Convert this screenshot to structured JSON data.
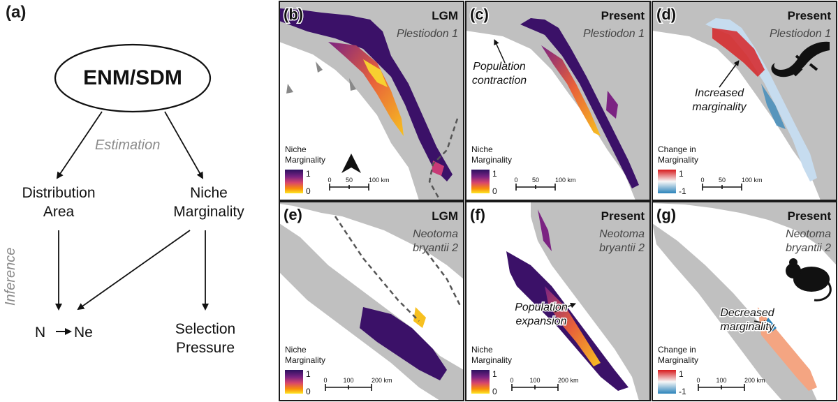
{
  "panel_a": {
    "label": "(a)",
    "ellipse_text": "ENM/SDM",
    "estimation": "Estimation",
    "inference": "Inference",
    "distribution_l1": "Distribution",
    "distribution_l2": "Area",
    "niche_l1": "Niche",
    "niche_l2": "Marginality",
    "n": "N",
    "ne": "Ne",
    "selection_l1": "Selection",
    "selection_l2": "Pressure"
  },
  "colors": {
    "land": "#c0c0c0",
    "ocean": "#ffffff",
    "marg_high": "#2c1160",
    "marg_low": "#fde725",
    "change_pos": "#d7191c",
    "change_neg": "#2b83ba",
    "border": "#555555"
  },
  "maps": [
    {
      "label": "(b)",
      "period": "LGM",
      "species_l1": "Plestiodon 1",
      "species_l2": "",
      "legend_t1": "Niche",
      "legend_t2": "Marginality",
      "legend_max": "1",
      "legend_min": "0",
      "scale_ticks": [
        "0",
        "50",
        "100 km"
      ],
      "annotation_l1": "",
      "annotation_l2": ""
    },
    {
      "label": "(c)",
      "period": "Present",
      "species_l1": "Plestiodon 1",
      "species_l2": "",
      "legend_t1": "Niche",
      "legend_t2": "Marginality",
      "legend_max": "1",
      "legend_min": "0",
      "scale_ticks": [
        "0",
        "50",
        "100 km"
      ],
      "annotation_l1": "Population",
      "annotation_l2": "contraction"
    },
    {
      "label": "(d)",
      "period": "Present",
      "species_l1": "Plestiodon 1",
      "species_l2": "",
      "legend_t1": "Change in",
      "legend_t2": "Marginality",
      "legend_max": "1",
      "legend_min": "-1",
      "scale_ticks": [
        "0",
        "50",
        "100 km"
      ],
      "annotation_l1": "Increased",
      "annotation_l2": "marginality"
    },
    {
      "label": "(e)",
      "period": "LGM",
      "species_l1": "Neotoma",
      "species_l2": "bryantii 2",
      "legend_t1": "Niche",
      "legend_t2": "Marginality",
      "legend_max": "1",
      "legend_min": "0",
      "scale_ticks": [
        "0",
        "100",
        "200 km"
      ],
      "annotation_l1": "",
      "annotation_l2": ""
    },
    {
      "label": "(f)",
      "period": "Present",
      "species_l1": "Neotoma",
      "species_l2": "bryantii 2",
      "legend_t1": "Niche",
      "legend_t2": "Marginality",
      "legend_max": "1",
      "legend_min": "0",
      "scale_ticks": [
        "0",
        "100",
        "200 km"
      ],
      "annotation_l1": "Population",
      "annotation_l2": "expansion"
    },
    {
      "label": "(g)",
      "period": "Present",
      "species_l1": "Neotoma",
      "species_l2": "bryantii 2",
      "legend_t1": "Change in",
      "legend_t2": "Marginality",
      "legend_max": "1",
      "legend_min": "-1",
      "scale_ticks": [
        "0",
        "100",
        "200 km"
      ],
      "annotation_l1": "Decreased",
      "annotation_l2": "marginality"
    }
  ]
}
